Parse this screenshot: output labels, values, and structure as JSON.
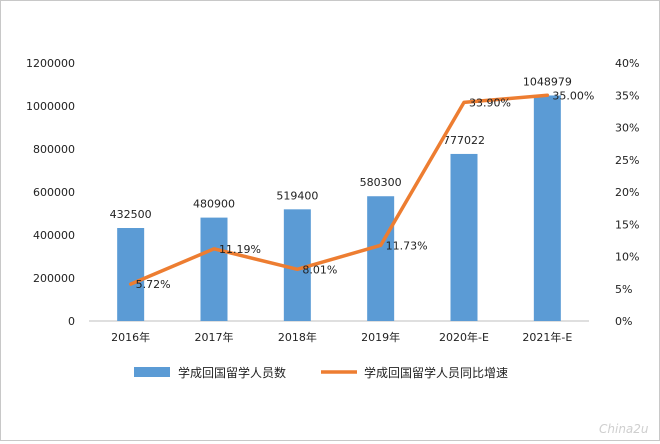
{
  "chart_data": {
    "type": "bar",
    "categories": [
      "2016年",
      "2017年",
      "2018年",
      "2019年",
      "2020年-E",
      "2021年-E"
    ],
    "series": [
      {
        "name": "学成回国留学人员数",
        "type": "bar",
        "axis": "left",
        "values": [
          432500,
          480900,
          519400,
          580300,
          777022,
          1048979
        ],
        "labels": [
          "432500",
          "480900",
          "519400",
          "580300",
          "777022",
          "1048979"
        ],
        "color": "#5b9bd5"
      },
      {
        "name": "学成回国留学人员同比增速",
        "type": "line",
        "axis": "right",
        "values": [
          5.72,
          11.19,
          8.01,
          11.73,
          33.9,
          35.0
        ],
        "labels": [
          "5.72%",
          "11.19%",
          "8.01%",
          "11.73%",
          "33.90%",
          "35.00%"
        ],
        "color": "#ed7d31"
      }
    ],
    "y_left": {
      "ylim": [
        0,
        1200000
      ],
      "ticks": [
        "0",
        "200000",
        "400000",
        "600000",
        "800000",
        "1000000",
        "1200000"
      ]
    },
    "y_right": {
      "ylim": [
        0,
        40
      ],
      "ticks": [
        "0%",
        "5%",
        "10%",
        "15%",
        "20%",
        "25%",
        "30%",
        "35%",
        "40%"
      ]
    },
    "grid": false,
    "legend_position": "bottom"
  },
  "watermark": "China2u"
}
